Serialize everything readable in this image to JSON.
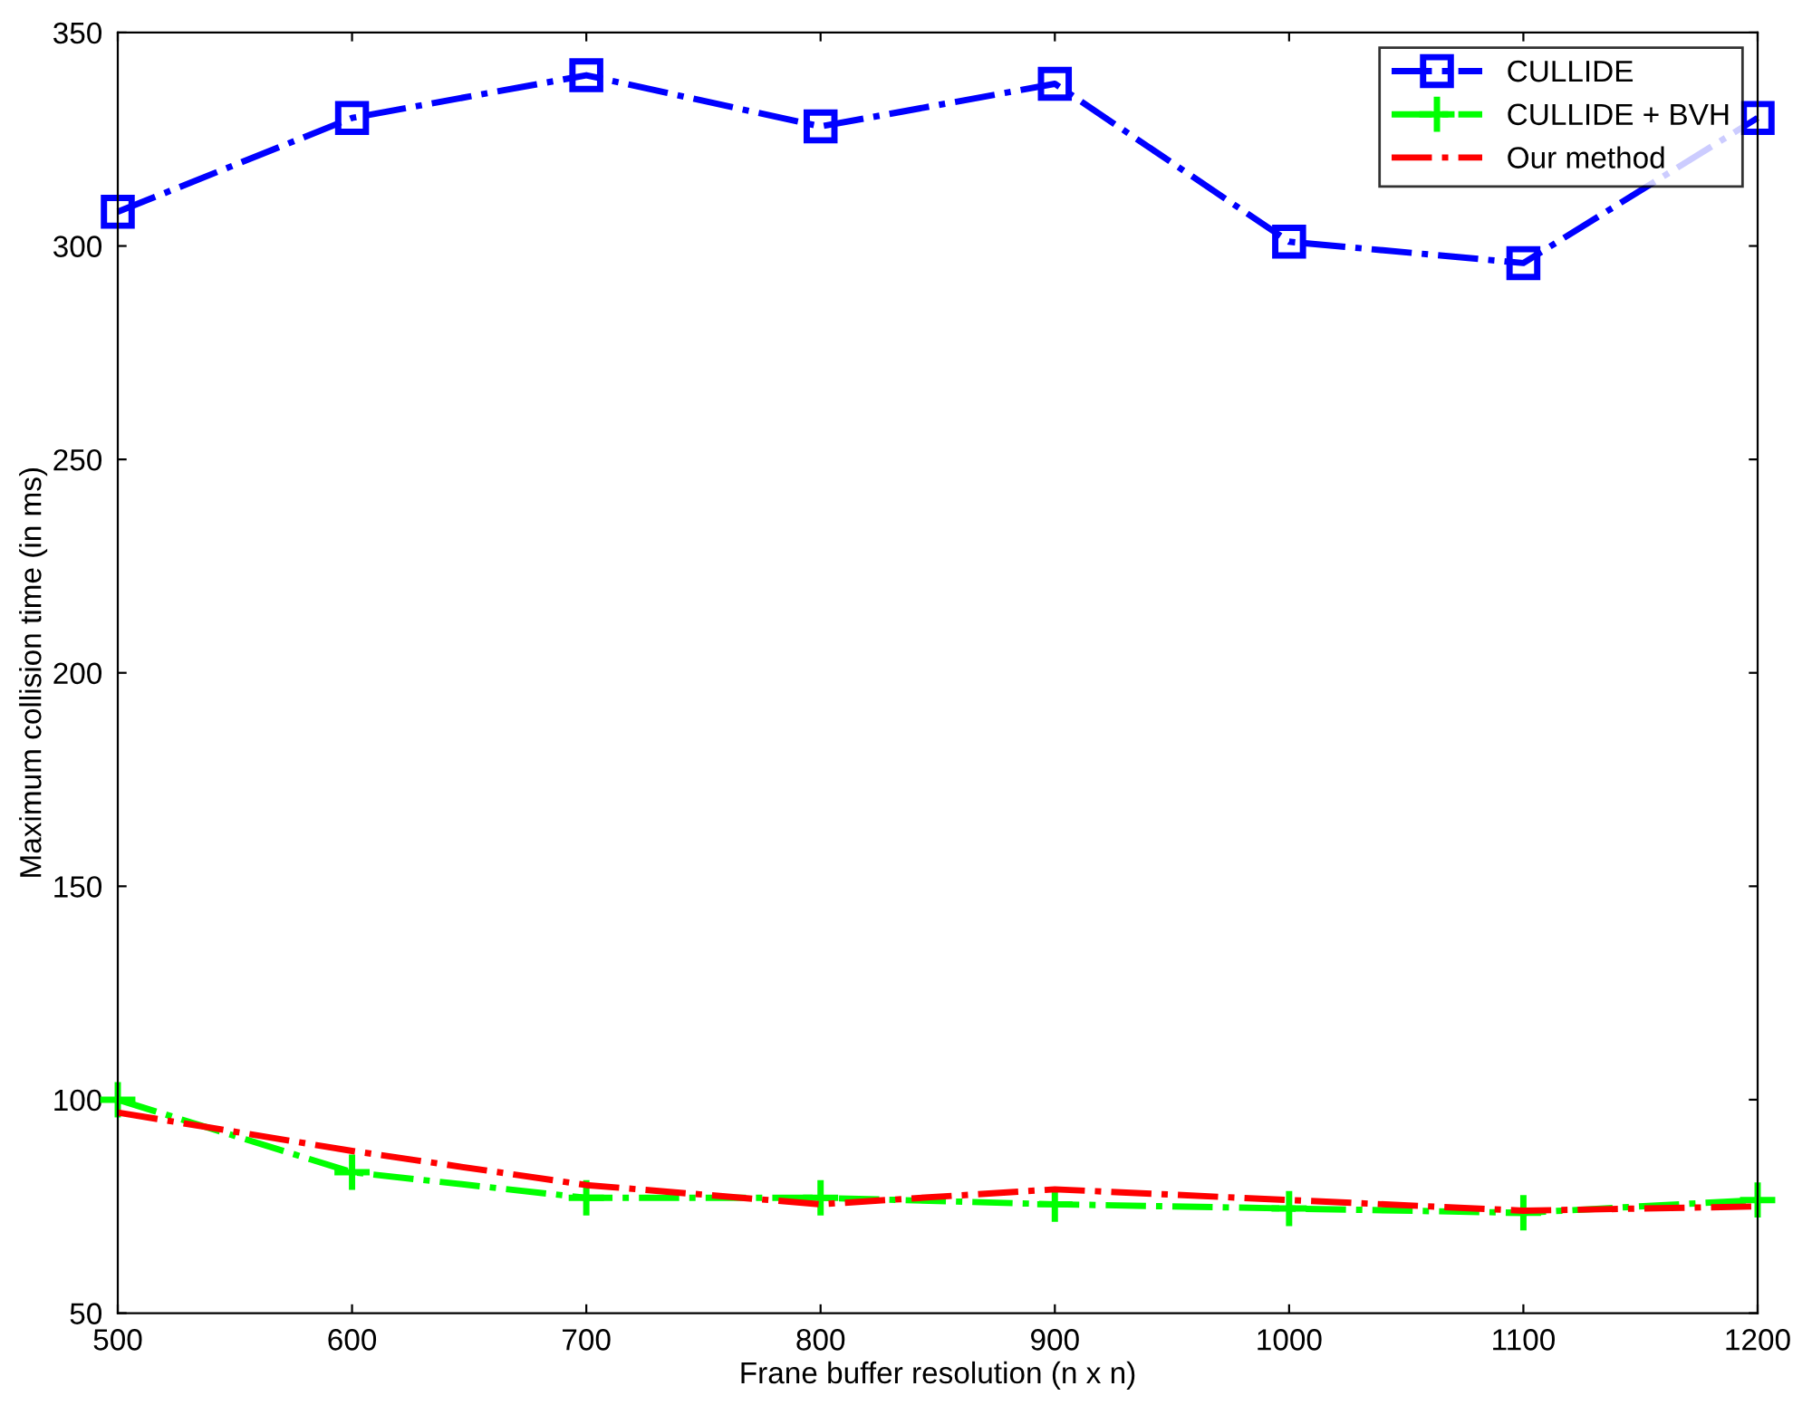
{
  "chart_data": {
    "type": "line",
    "xlabel": "Frane buffer resolution (n x n)",
    "ylabel": "Maximum collision time (in ms)",
    "x": [
      500,
      600,
      700,
      800,
      900,
      1000,
      1100,
      1200
    ],
    "series": [
      {
        "name": "CULLIDE",
        "color": "#0000ff",
        "marker": "square",
        "line_style": "dashdot",
        "values": [
          308,
          330,
          340,
          328,
          338,
          301,
          296,
          330
        ]
      },
      {
        "name": "CULLIDE + BVH",
        "color": "#00ff00",
        "marker": "cross",
        "line_style": "dashdot",
        "values": [
          100,
          83,
          77,
          77,
          75.5,
          74.5,
          73.5,
          76.5
        ]
      },
      {
        "name": "Our method",
        "color": "#ff0000",
        "marker": "none",
        "line_style": "dashdot",
        "values": [
          97,
          88,
          80,
          75.5,
          79,
          76.5,
          74,
          75
        ]
      }
    ],
    "xlim": [
      500,
      1200
    ],
    "xticks": [
      500,
      600,
      700,
      800,
      900,
      1000,
      1100,
      1200
    ],
    "ylim": [
      50,
      350
    ],
    "yticks": [
      50,
      100,
      150,
      200,
      250,
      300,
      350
    ],
    "grid": false,
    "legend": "top right"
  }
}
